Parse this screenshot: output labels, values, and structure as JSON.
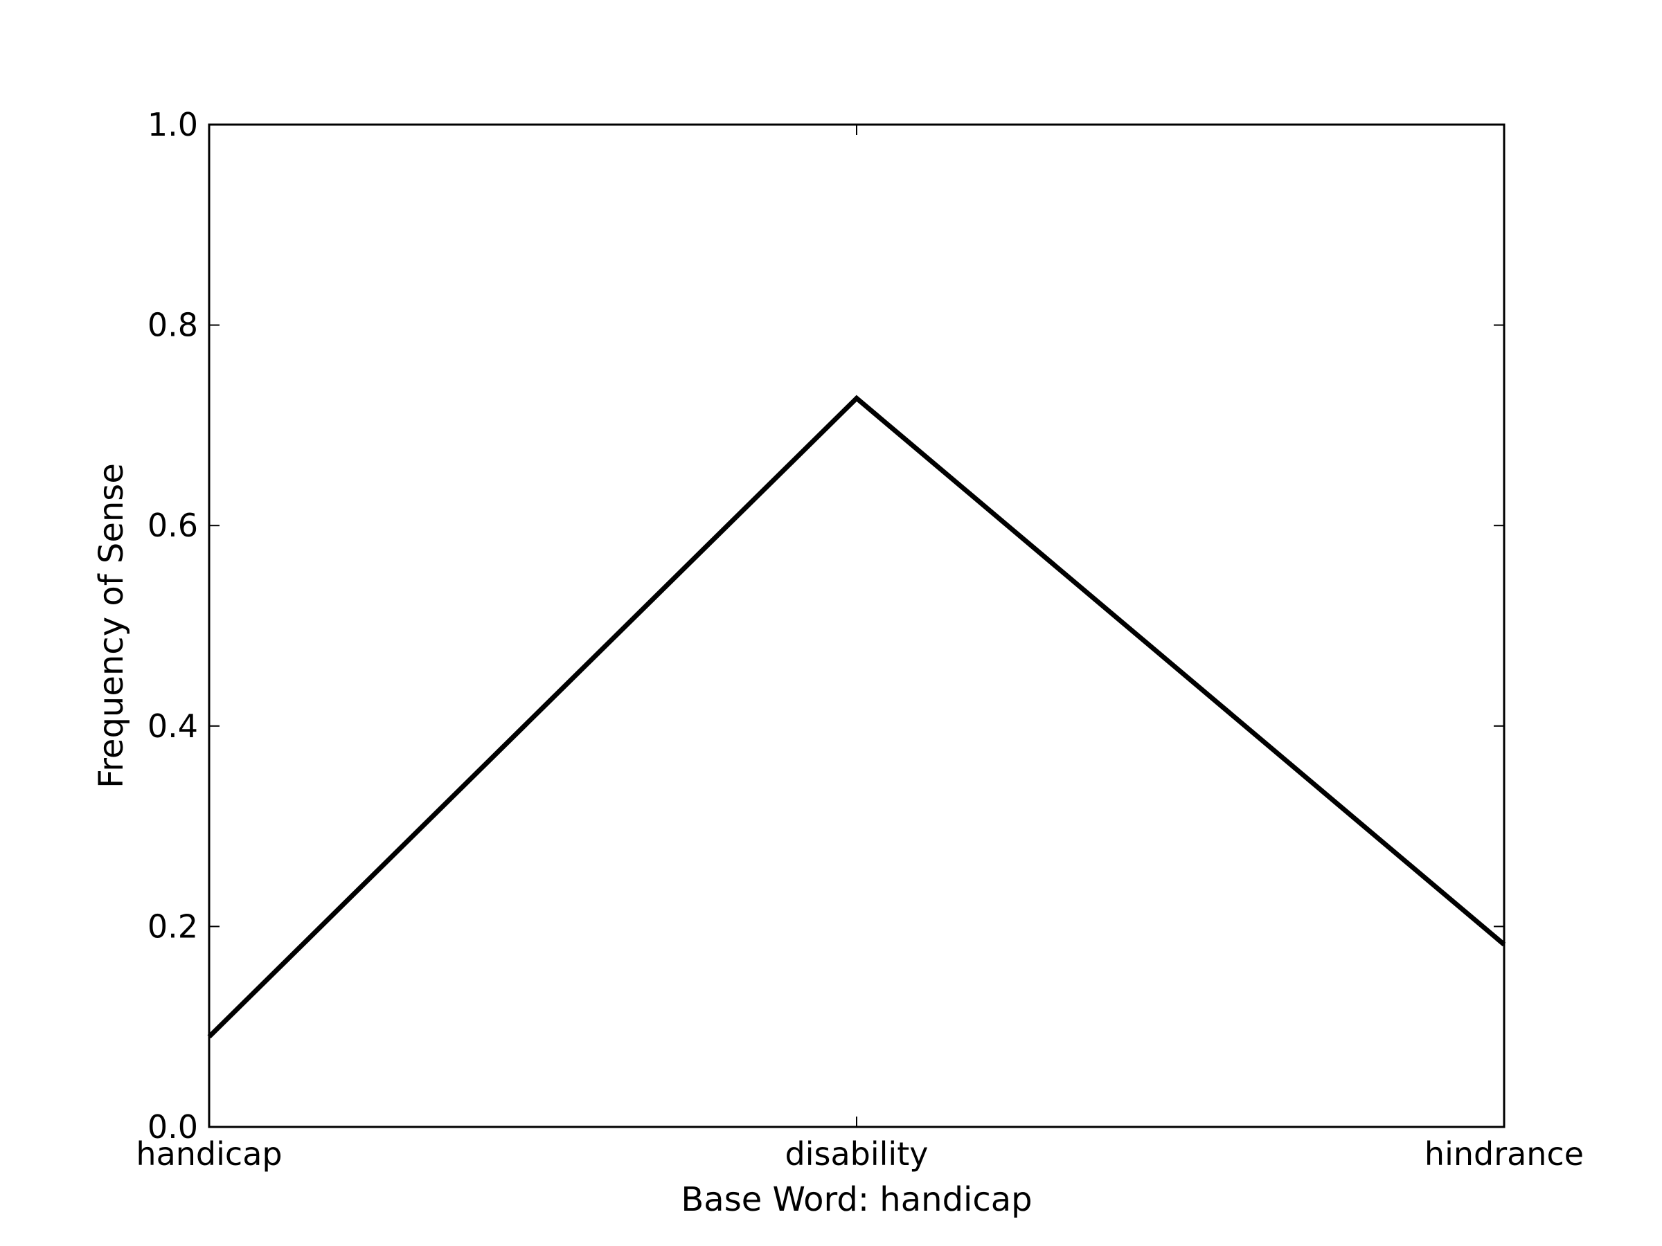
{
  "chart_data": {
    "type": "line",
    "categories": [
      "handicap",
      "disability",
      "hindrance"
    ],
    "series": [
      {
        "values": [
          0.09,
          0.727,
          0.182
        ],
        "color": "#000000"
      }
    ],
    "xlabel": "Base Word: handicap",
    "ylabel": "Frequency of Sense",
    "ylim": [
      0.0,
      1.0
    ],
    "yticks": [
      0.0,
      0.2,
      0.4,
      0.6,
      0.8,
      1.0
    ],
    "ytick_labels": [
      "0.0",
      "0.2",
      "0.4",
      "0.6",
      "0.8",
      "1.0"
    ],
    "grid": false,
    "legend": false
  }
}
